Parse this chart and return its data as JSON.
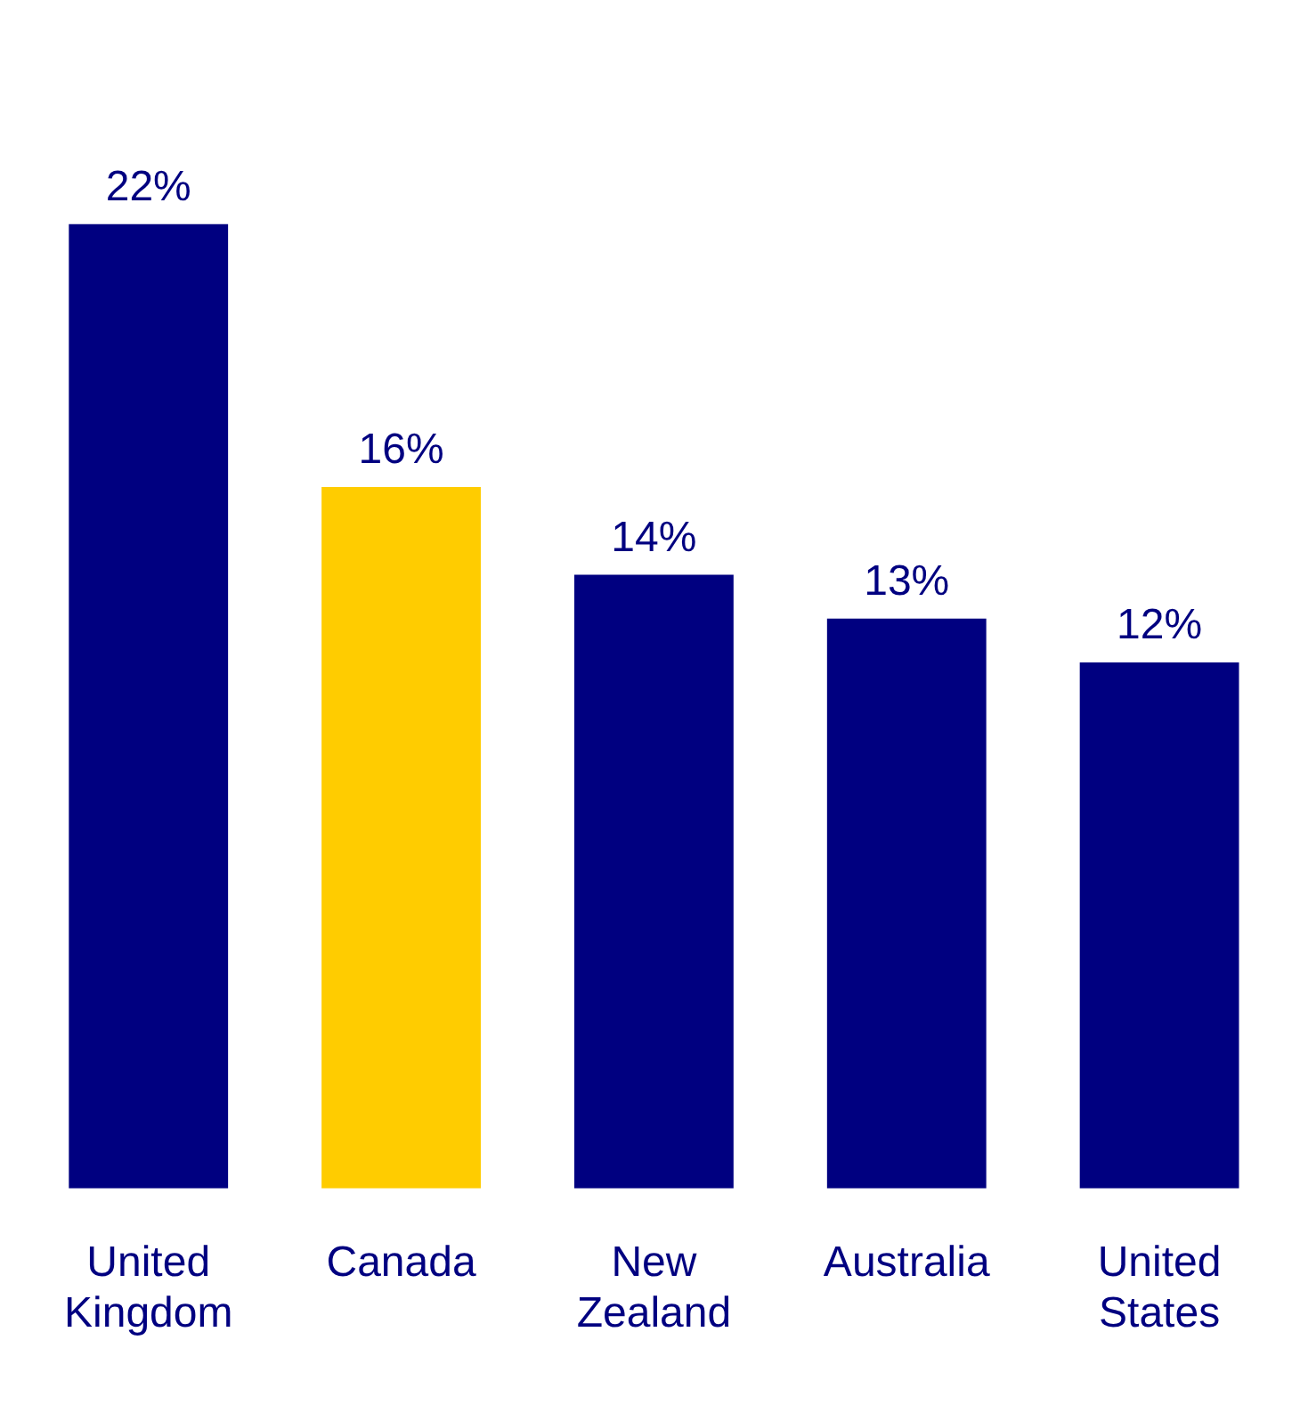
{
  "chart_data": {
    "type": "bar",
    "categories": [
      "United Kingdom",
      "Canada",
      "New Zealand",
      "Australia",
      "United States"
    ],
    "values": [
      22,
      16,
      14,
      13,
      12
    ],
    "colors": [
      "#000080",
      "#ffcc00",
      "#000080",
      "#000080",
      "#000080"
    ],
    "value_labels": [
      "22%",
      "16%",
      "14%",
      "13%",
      "12%"
    ],
    "grid": false,
    "legend": false
  }
}
